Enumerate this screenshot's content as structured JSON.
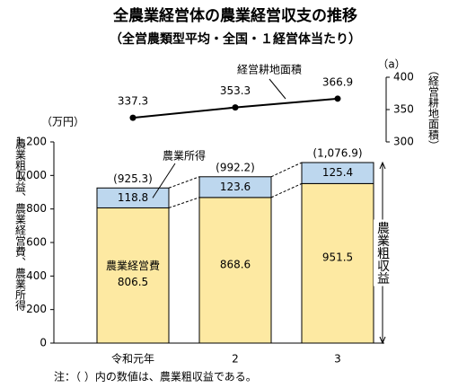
{
  "chart_data": {
    "type": "bar",
    "stacked": true,
    "title": "全農業経営体の農業経営収支の推移",
    "subtitle": "（全営農類型平均・全国・１経営体当たり）",
    "y_unit": "（万円）",
    "ylabel": "農業粗収益、農業経営費、農業所得",
    "categories": [
      "令和元年",
      "2",
      "3"
    ],
    "series": [
      {
        "name": "農業経営費",
        "color": "#fde9a2",
        "values": [
          806.5,
          868.6,
          951.5
        ]
      },
      {
        "name": "農業所得",
        "color": "#bdd7ee",
        "values": [
          118.8,
          123.6,
          125.4
        ]
      },
      {
        "name": "経営耕地面積",
        "type": "line",
        "axis": "y2",
        "color": "#000000",
        "values": [
          337.3,
          353.3,
          366.9
        ]
      }
    ],
    "totals": {
      "name": "農業粗収益",
      "values": [
        925.3,
        992.2,
        1076.9
      ],
      "value_labels": [
        "(925.3)",
        "(992.2)",
        "(1,076.9)"
      ]
    },
    "ylim": [
      0,
      1200
    ],
    "yticks": [
      0,
      200,
      400,
      600,
      800,
      {
        "value": 1000,
        "label": "1,000"
      },
      {
        "value": 1200,
        "label": "1,200"
      }
    ],
    "y2lim": [
      300,
      400
    ],
    "y2ticks": [
      300,
      350,
      400
    ],
    "y2_unit": "（a）",
    "y2label": "（経営耕地面積）",
    "note": "注：（ ）内の数値は、農業粗収益である。"
  }
}
